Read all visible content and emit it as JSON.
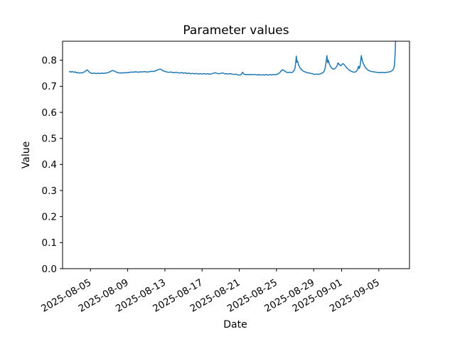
{
  "figure": {
    "background": "#ffffff"
  },
  "chart_data": {
    "type": "line",
    "title": "Parameter values",
    "xlabel": "Date",
    "ylabel": "Value",
    "series_name": "parameter-values",
    "line_color": "#1f77b4",
    "grid": false,
    "legend": "none",
    "x_unit": "days since 2025-08-01 00:00",
    "xlim": [
      1.0,
      38.3
    ],
    "ylim": [
      0,
      0.873
    ],
    "x_ticks": [
      {
        "t": 4,
        "label": "2025-08-05"
      },
      {
        "t": 8,
        "label": "2025-08-09"
      },
      {
        "t": 12,
        "label": "2025-08-13"
      },
      {
        "t": 16,
        "label": "2025-08-17"
      },
      {
        "t": 20,
        "label": "2025-08-21"
      },
      {
        "t": 24,
        "label": "2025-08-25"
      },
      {
        "t": 28,
        "label": "2025-08-29"
      },
      {
        "t": 31,
        "label": "2025-09-01"
      },
      {
        "t": 35,
        "label": "2025-09-05"
      }
    ],
    "y_ticks": [
      {
        "v": 0.0,
        "label": "0.0"
      },
      {
        "v": 0.1,
        "label": "0.1"
      },
      {
        "v": 0.2,
        "label": "0.2"
      },
      {
        "v": 0.3,
        "label": "0.3"
      },
      {
        "v": 0.4,
        "label": "0.4"
      },
      {
        "v": 0.5,
        "label": "0.5"
      },
      {
        "v": 0.6,
        "label": "0.6"
      },
      {
        "v": 0.7,
        "label": "0.7"
      },
      {
        "v": 0.8,
        "label": "0.8"
      }
    ],
    "points": [
      [
        1.74,
        0.757
      ],
      [
        1.9,
        0.7545
      ],
      [
        2.05,
        0.7565
      ],
      [
        2.2,
        0.754
      ],
      [
        2.35,
        0.7555
      ],
      [
        2.5,
        0.7515
      ],
      [
        2.65,
        0.753
      ],
      [
        2.8,
        0.7505
      ],
      [
        2.95,
        0.752
      ],
      [
        3.1,
        0.7512
      ],
      [
        3.25,
        0.7535
      ],
      [
        3.42,
        0.757
      ],
      [
        3.55,
        0.7605
      ],
      [
        3.65,
        0.763
      ],
      [
        3.78,
        0.7585
      ],
      [
        3.9,
        0.7535
      ],
      [
        4.05,
        0.7505
      ],
      [
        4.2,
        0.7492
      ],
      [
        4.4,
        0.751
      ],
      [
        4.6,
        0.7485
      ],
      [
        4.8,
        0.7502
      ],
      [
        5.0,
        0.7488
      ],
      [
        5.2,
        0.7505
      ],
      [
        5.4,
        0.7495
      ],
      [
        5.6,
        0.7505
      ],
      [
        5.8,
        0.7515
      ],
      [
        6.0,
        0.754
      ],
      [
        6.2,
        0.758
      ],
      [
        6.4,
        0.761
      ],
      [
        6.6,
        0.758
      ],
      [
        6.8,
        0.754
      ],
      [
        7.0,
        0.752
      ],
      [
        7.2,
        0.7508
      ],
      [
        7.4,
        0.752
      ],
      [
        7.6,
        0.7512
      ],
      [
        7.8,
        0.7528
      ],
      [
        8.0,
        0.752
      ],
      [
        8.2,
        0.7532
      ],
      [
        8.4,
        0.755
      ],
      [
        8.6,
        0.754
      ],
      [
        8.8,
        0.7558
      ],
      [
        9.0,
        0.7548
      ],
      [
        9.2,
        0.754
      ],
      [
        9.4,
        0.7556
      ],
      [
        9.6,
        0.7548
      ],
      [
        9.8,
        0.7565
      ],
      [
        10.0,
        0.7555
      ],
      [
        10.2,
        0.7548
      ],
      [
        10.4,
        0.7565
      ],
      [
        10.6,
        0.7575
      ],
      [
        10.8,
        0.757
      ],
      [
        11.0,
        0.759
      ],
      [
        11.15,
        0.7618
      ],
      [
        11.3,
        0.7645
      ],
      [
        11.5,
        0.766
      ],
      [
        11.65,
        0.7632
      ],
      [
        11.8,
        0.7595
      ],
      [
        12.0,
        0.757
      ],
      [
        12.2,
        0.7552
      ],
      [
        12.4,
        0.7535
      ],
      [
        12.6,
        0.7548
      ],
      [
        12.8,
        0.7532
      ],
      [
        13.0,
        0.752
      ],
      [
        13.2,
        0.7538
      ],
      [
        13.4,
        0.7522
      ],
      [
        13.6,
        0.751
      ],
      [
        13.8,
        0.7528
      ],
      [
        14.0,
        0.7502
      ],
      [
        14.2,
        0.752
      ],
      [
        14.4,
        0.749
      ],
      [
        14.6,
        0.7508
      ],
      [
        14.8,
        0.748
      ],
      [
        15.0,
        0.7498
      ],
      [
        15.2,
        0.7478
      ],
      [
        15.4,
        0.7495
      ],
      [
        15.6,
        0.747
      ],
      [
        15.8,
        0.7488
      ],
      [
        16.0,
        0.747
      ],
      [
        16.2,
        0.7488
      ],
      [
        16.4,
        0.747
      ],
      [
        16.6,
        0.7487
      ],
      [
        16.8,
        0.7462
      ],
      [
        17.0,
        0.748
      ],
      [
        17.2,
        0.7498
      ],
      [
        17.4,
        0.7518
      ],
      [
        17.6,
        0.7498
      ],
      [
        17.8,
        0.748
      ],
      [
        18.0,
        0.7497
      ],
      [
        18.2,
        0.7512
      ],
      [
        18.4,
        0.7482
      ],
      [
        18.6,
        0.748
      ],
      [
        18.8,
        0.747
      ],
      [
        19.0,
        0.7488
      ],
      [
        19.2,
        0.747
      ],
      [
        19.4,
        0.7452
      ],
      [
        19.6,
        0.747
      ],
      [
        19.8,
        0.7445
      ],
      [
        20.0,
        0.7428
      ],
      [
        20.2,
        0.745
      ],
      [
        20.35,
        0.7538
      ],
      [
        20.5,
        0.7468
      ],
      [
        20.7,
        0.7445
      ],
      [
        20.9,
        0.746
      ],
      [
        21.1,
        0.7445
      ],
      [
        21.3,
        0.746
      ],
      [
        21.5,
        0.7442
      ],
      [
        21.7,
        0.7455
      ],
      [
        21.9,
        0.7432
      ],
      [
        22.1,
        0.745
      ],
      [
        22.3,
        0.7428
      ],
      [
        22.5,
        0.7445
      ],
      [
        22.7,
        0.7432
      ],
      [
        22.9,
        0.745
      ],
      [
        23.1,
        0.743
      ],
      [
        23.3,
        0.7448
      ],
      [
        23.5,
        0.7438
      ],
      [
        23.7,
        0.7455
      ],
      [
        23.9,
        0.7445
      ],
      [
        24.1,
        0.7468
      ],
      [
        24.3,
        0.7505
      ],
      [
        24.5,
        0.759
      ],
      [
        24.65,
        0.764
      ],
      [
        24.8,
        0.7605
      ],
      [
        25.0,
        0.7555
      ],
      [
        25.2,
        0.7525
      ],
      [
        25.4,
        0.754
      ],
      [
        25.6,
        0.7525
      ],
      [
        25.75,
        0.755
      ],
      [
        25.9,
        0.761
      ],
      [
        26.0,
        0.772
      ],
      [
        26.08,
        0.795
      ],
      [
        26.13,
        0.816
      ],
      [
        26.2,
        0.7925
      ],
      [
        26.28,
        0.796
      ],
      [
        26.38,
        0.7815
      ],
      [
        26.5,
        0.7725
      ],
      [
        26.7,
        0.7635
      ],
      [
        26.9,
        0.758
      ],
      [
        27.1,
        0.755
      ],
      [
        27.3,
        0.7525
      ],
      [
        27.5,
        0.7512
      ],
      [
        27.7,
        0.7495
      ],
      [
        27.9,
        0.748
      ],
      [
        28.1,
        0.7455
      ],
      [
        28.3,
        0.747
      ],
      [
        28.5,
        0.7458
      ],
      [
        28.7,
        0.7478
      ],
      [
        28.9,
        0.7505
      ],
      [
        29.05,
        0.754
      ],
      [
        29.2,
        0.764
      ],
      [
        29.32,
        0.789
      ],
      [
        29.42,
        0.818
      ],
      [
        29.5,
        0.7905
      ],
      [
        29.58,
        0.8
      ],
      [
        29.68,
        0.7862
      ],
      [
        29.8,
        0.7762
      ],
      [
        29.95,
        0.7695
      ],
      [
        30.1,
        0.7655
      ],
      [
        30.3,
        0.7682
      ],
      [
        30.5,
        0.7778
      ],
      [
        30.62,
        0.79
      ],
      [
        30.75,
        0.7832
      ],
      [
        30.9,
        0.779
      ],
      [
        31.05,
        0.7845
      ],
      [
        31.15,
        0.787
      ],
      [
        31.3,
        0.7822
      ],
      [
        31.45,
        0.7755
      ],
      [
        31.6,
        0.7692
      ],
      [
        31.8,
        0.7625
      ],
      [
        32.0,
        0.7582
      ],
      [
        32.2,
        0.7552
      ],
      [
        32.4,
        0.754
      ],
      [
        32.55,
        0.7565
      ],
      [
        32.7,
        0.7625
      ],
      [
        32.82,
        0.777
      ],
      [
        32.9,
        0.7682
      ],
      [
        33.0,
        0.7815
      ],
      [
        33.12,
        0.818
      ],
      [
        33.22,
        0.7985
      ],
      [
        33.35,
        0.7868
      ],
      [
        33.5,
        0.7752
      ],
      [
        33.7,
        0.7662
      ],
      [
        33.9,
        0.7605
      ],
      [
        34.1,
        0.758
      ],
      [
        34.35,
        0.756
      ],
      [
        34.6,
        0.7545
      ],
      [
        34.85,
        0.7532
      ],
      [
        35.1,
        0.7522
      ],
      [
        35.35,
        0.7535
      ],
      [
        35.6,
        0.7525
      ],
      [
        35.85,
        0.7538
      ],
      [
        36.1,
        0.755
      ],
      [
        36.3,
        0.7572
      ],
      [
        36.45,
        0.7605
      ],
      [
        36.58,
        0.766
      ],
      [
        36.68,
        0.7805
      ],
      [
        36.74,
        0.8155
      ],
      [
        36.78,
        0.8495
      ],
      [
        36.8,
        0.873
      ]
    ]
  }
}
